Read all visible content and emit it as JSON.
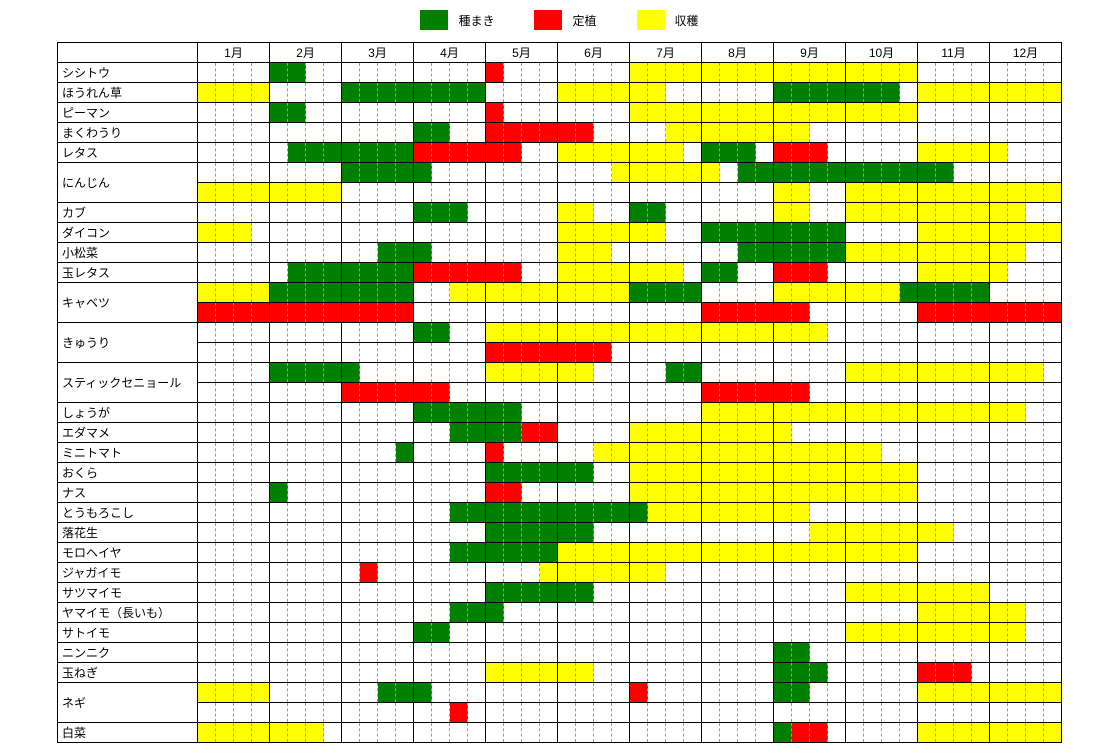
{
  "colors": {
    "sow": "#008000",
    "plant": "#ff0000",
    "harvest": "#ffff00",
    "bg": "#ffffff",
    "grid_solid": "#000000",
    "grid_dash": "#999999"
  },
  "legend": [
    {
      "color": "sow",
      "label": "種まき"
    },
    {
      "color": "plant",
      "label": "定植"
    },
    {
      "color": "harvest",
      "label": "収穫"
    }
  ],
  "months": [
    "1月",
    "2月",
    "3月",
    "4月",
    "5月",
    "6月",
    "7月",
    "8月",
    "9月",
    "10月",
    "11月",
    "12月"
  ],
  "cells_per_month": 4,
  "crops": [
    {
      "name": "シシトウ",
      "rows": [
        {
          "4": "s",
          "5": "s",
          "16": "p",
          "24": "h",
          "25": "h",
          "26": "h",
          "27": "h",
          "28": "h",
          "29": "h",
          "30": "h",
          "31": "h",
          "32": "h",
          "33": "h",
          "34": "h",
          "35": "h",
          "36": "h",
          "37": "h",
          "38": "h",
          "39": "h"
        }
      ]
    },
    {
      "name": "ほうれん草",
      "rows": [
        {
          "0": "h",
          "1": "h",
          "2": "h",
          "3": "h",
          "8": "s",
          "9": "s",
          "10": "s",
          "11": "s",
          "12": "s",
          "13": "s",
          "14": "s",
          "15": "s",
          "20": "h",
          "21": "h",
          "22": "h",
          "23": "h",
          "24": "h",
          "25": "h",
          "32": "s",
          "33": "s",
          "34": "s",
          "35": "s",
          "36": "s",
          "37": "s",
          "38": "s",
          "40": "h",
          "41": "h",
          "42": "h",
          "43": "h",
          "44": "h",
          "45": "h",
          "46": "h",
          "47": "h"
        }
      ]
    },
    {
      "name": "ピーマン",
      "rows": [
        {
          "4": "s",
          "5": "s",
          "16": "p",
          "24": "h",
          "25": "h",
          "26": "h",
          "27": "h",
          "28": "h",
          "29": "h",
          "30": "h",
          "31": "h",
          "32": "h",
          "33": "h",
          "34": "h",
          "35": "h",
          "36": "h",
          "37": "h",
          "38": "h",
          "39": "h"
        }
      ]
    },
    {
      "name": "まくわうり",
      "rows": [
        {
          "12": "s",
          "13": "s",
          "16": "p",
          "17": "p",
          "18": "p",
          "19": "p",
          "20": "p",
          "21": "p",
          "26": "h",
          "27": "h",
          "28": "h",
          "29": "h",
          "30": "h",
          "31": "h",
          "32": "h",
          "33": "h"
        }
      ]
    },
    {
      "name": "レタス",
      "rows": [
        {
          "5": "s",
          "6": "s",
          "7": "s",
          "8": "s",
          "9": "s",
          "10": "s",
          "11": "s",
          "12": "p",
          "13": "p",
          "14": "p",
          "15": "p",
          "16": "p",
          "17": "p",
          "20": "h",
          "21": "h",
          "22": "h",
          "23": "h",
          "24": "h",
          "25": "h",
          "26": "h",
          "28": "s",
          "29": "s",
          "30": "s",
          "32": "p",
          "33": "p",
          "34": "p",
          "40": "h",
          "41": "h",
          "42": "h",
          "43": "h",
          "44": "h"
        }
      ]
    },
    {
      "name": "にんじん",
      "rows": [
        {
          "8": "s",
          "9": "s",
          "10": "s",
          "11": "s",
          "12": "s",
          "23": "h",
          "24": "h",
          "25": "h",
          "26": "h",
          "27": "h",
          "28": "h",
          "30": "s",
          "31": "s",
          "32": "s",
          "33": "s",
          "34": "s",
          "35": "s",
          "36": "s",
          "37": "s",
          "38": "s",
          "39": "s",
          "40": "s",
          "41": "s"
        },
        {
          "0": "h",
          "1": "h",
          "2": "h",
          "3": "h",
          "4": "h",
          "5": "h",
          "6": "h",
          "7": "h",
          "32": "h",
          "33": "h",
          "36": "h",
          "37": "h",
          "38": "h",
          "39": "h",
          "40": "h",
          "41": "h",
          "42": "h",
          "43": "h",
          "44": "h",
          "45": "h",
          "46": "h",
          "47": "h"
        }
      ]
    },
    {
      "name": "カブ",
      "rows": [
        {
          "12": "s",
          "13": "s",
          "14": "s",
          "20": "h",
          "21": "h",
          "24": "s",
          "25": "s",
          "32": "h",
          "33": "h",
          "36": "h",
          "37": "h",
          "38": "h",
          "39": "h",
          "40": "h",
          "41": "h",
          "42": "h",
          "43": "h",
          "44": "h",
          "45": "h"
        }
      ]
    },
    {
      "name": "ダイコン",
      "rows": [
        {
          "0": "h",
          "1": "h",
          "2": "h",
          "20": "h",
          "21": "h",
          "22": "h",
          "23": "h",
          "24": "h",
          "25": "h",
          "28": "s",
          "29": "s",
          "30": "s",
          "31": "s",
          "32": "s",
          "33": "s",
          "34": "s",
          "35": "s",
          "40": "h",
          "41": "h",
          "42": "h",
          "43": "h",
          "44": "h",
          "45": "h",
          "46": "h",
          "47": "h"
        }
      ]
    },
    {
      "name": "小松菜",
      "rows": [
        {
          "10": "s",
          "11": "s",
          "12": "s",
          "20": "h",
          "21": "h",
          "22": "h",
          "30": "s",
          "31": "s",
          "32": "s",
          "33": "s",
          "34": "s",
          "35": "s",
          "36": "h",
          "37": "h",
          "38": "h",
          "39": "h",
          "40": "h",
          "41": "h",
          "42": "h",
          "43": "h",
          "44": "h",
          "45": "h"
        }
      ]
    },
    {
      "name": "玉レタス",
      "rows": [
        {
          "5": "s",
          "6": "s",
          "7": "s",
          "8": "s",
          "9": "s",
          "10": "s",
          "11": "s",
          "12": "p",
          "13": "p",
          "14": "p",
          "15": "p",
          "16": "p",
          "17": "p",
          "20": "h",
          "21": "h",
          "22": "h",
          "23": "h",
          "24": "h",
          "25": "h",
          "26": "h",
          "28": "s",
          "29": "s",
          "32": "p",
          "33": "p",
          "34": "p",
          "40": "h",
          "41": "h",
          "42": "h",
          "43": "h",
          "44": "h"
        }
      ]
    },
    {
      "name": "キャベツ",
      "rows": [
        {
          "0": "h",
          "1": "h",
          "2": "h",
          "3": "h",
          "4": "s",
          "5": "s",
          "6": "s",
          "7": "s",
          "8": "s",
          "9": "s",
          "10": "s",
          "11": "s",
          "14": "h",
          "15": "h",
          "16": "h",
          "17": "h",
          "18": "h",
          "19": "h",
          "20": "h",
          "21": "h",
          "22": "h",
          "23": "h",
          "24": "s",
          "25": "s",
          "26": "s",
          "27": "s",
          "32": "h",
          "33": "h",
          "34": "h",
          "35": "h",
          "36": "h",
          "37": "h",
          "38": "h",
          "39": "s",
          "40": "s",
          "41": "s",
          "42": "s",
          "43": "s"
        },
        {
          "0": "p",
          "1": "p",
          "2": "p",
          "3": "p",
          "4": "p",
          "5": "p",
          "6": "p",
          "7": "p",
          "8": "p",
          "9": "p",
          "10": "p",
          "11": "p",
          "28": "p",
          "29": "p",
          "30": "p",
          "31": "p",
          "32": "p",
          "33": "p",
          "40": "p",
          "41": "p",
          "42": "p",
          "43": "p",
          "44": "p",
          "45": "p",
          "46": "p",
          "47": "p"
        }
      ]
    },
    {
      "name": "きゅうり",
      "rows": [
        {
          "12": "s",
          "13": "s",
          "16": "h",
          "17": "h",
          "18": "h",
          "19": "h",
          "20": "h",
          "21": "h",
          "22": "h",
          "23": "h",
          "24": "h",
          "25": "h",
          "26": "h",
          "27": "h",
          "28": "h",
          "29": "h",
          "30": "h",
          "31": "h",
          "32": "h",
          "33": "h",
          "34": "h"
        },
        {
          "16": "p",
          "17": "p",
          "18": "p",
          "19": "p",
          "20": "p",
          "21": "p",
          "22": "p"
        }
      ]
    },
    {
      "name": "スティックセニョール",
      "rows": [
        {
          "4": "s",
          "5": "s",
          "6": "s",
          "7": "s",
          "8": "s",
          "16": "h",
          "17": "h",
          "18": "h",
          "19": "h",
          "20": "h",
          "21": "h",
          "26": "s",
          "27": "s",
          "36": "h",
          "37": "h",
          "38": "h",
          "39": "h",
          "40": "h",
          "41": "h",
          "42": "h",
          "43": "h",
          "44": "h",
          "45": "h",
          "46": "h"
        },
        {
          "8": "p",
          "9": "p",
          "10": "p",
          "11": "p",
          "12": "p",
          "13": "p",
          "28": "p",
          "29": "p",
          "30": "p",
          "31": "p",
          "32": "p",
          "33": "p"
        }
      ]
    },
    {
      "name": "しょうが",
      "rows": [
        {
          "12": "s",
          "13": "s",
          "14": "s",
          "15": "s",
          "16": "s",
          "17": "s",
          "28": "h",
          "29": "h",
          "30": "h",
          "31": "h",
          "32": "h",
          "33": "h",
          "34": "h",
          "35": "h",
          "36": "h",
          "37": "h",
          "38": "h",
          "39": "h",
          "40": "h",
          "41": "h",
          "42": "h",
          "43": "h",
          "44": "h",
          "45": "h"
        }
      ]
    },
    {
      "name": "エダマメ",
      "rows": [
        {
          "14": "s",
          "15": "s",
          "16": "s",
          "17": "s",
          "18": "p",
          "19": "p",
          "24": "h",
          "25": "h",
          "26": "h",
          "27": "h",
          "28": "h",
          "29": "h",
          "30": "h",
          "31": "h",
          "32": "h"
        }
      ]
    },
    {
      "name": "ミニトマト",
      "rows": [
        {
          "11": "s",
          "16": "p",
          "22": "h",
          "23": "h",
          "24": "h",
          "25": "h",
          "26": "h",
          "27": "h",
          "28": "h",
          "29": "h",
          "30": "h",
          "31": "h",
          "32": "h",
          "33": "h",
          "34": "h",
          "35": "h",
          "36": "h",
          "37": "h"
        }
      ]
    },
    {
      "name": "おくら",
      "rows": [
        {
          "16": "s",
          "17": "s",
          "18": "s",
          "19": "s",
          "20": "s",
          "21": "s",
          "24": "h",
          "25": "h",
          "26": "h",
          "27": "h",
          "28": "h",
          "29": "h",
          "30": "h",
          "31": "h",
          "32": "h",
          "33": "h",
          "34": "h",
          "35": "h",
          "36": "h",
          "37": "h",
          "38": "h",
          "39": "h"
        }
      ]
    },
    {
      "name": "ナス",
      "rows": [
        {
          "4": "s",
          "16": "p",
          "17": "p",
          "24": "h",
          "25": "h",
          "26": "h",
          "27": "h",
          "28": "h",
          "29": "h",
          "30": "h",
          "31": "h",
          "32": "h",
          "33": "h",
          "34": "h",
          "35": "h",
          "36": "h",
          "37": "h",
          "38": "h",
          "39": "h"
        }
      ]
    },
    {
      "name": "とうもろこし",
      "rows": [
        {
          "14": "s",
          "15": "s",
          "16": "s",
          "17": "s",
          "18": "s",
          "19": "s",
          "20": "s",
          "21": "s",
          "22": "s",
          "23": "s",
          "24": "s",
          "25": "h",
          "26": "h",
          "27": "h",
          "28": "h",
          "29": "h",
          "30": "h",
          "31": "h",
          "32": "h",
          "33": "h"
        }
      ]
    },
    {
      "name": "落花生",
      "rows": [
        {
          "16": "s",
          "17": "s",
          "18": "s",
          "19": "s",
          "20": "s",
          "21": "s",
          "34": "h",
          "35": "h",
          "36": "h",
          "37": "h",
          "38": "h",
          "39": "h",
          "40": "h",
          "41": "h"
        }
      ]
    },
    {
      "name": "モロヘイヤ",
      "rows": [
        {
          "14": "s",
          "15": "s",
          "16": "s",
          "17": "s",
          "18": "s",
          "19": "s",
          "20": "h",
          "21": "h",
          "22": "h",
          "23": "h",
          "24": "h",
          "25": "h",
          "26": "h",
          "27": "h",
          "28": "h",
          "29": "h",
          "30": "h",
          "31": "h",
          "32": "h",
          "33": "h",
          "34": "h",
          "35": "h",
          "36": "h",
          "37": "h",
          "38": "h",
          "39": "h"
        }
      ]
    },
    {
      "name": "ジャガイモ",
      "rows": [
        {
          "9": "p",
          "19": "h",
          "20": "h",
          "21": "h",
          "22": "h",
          "23": "h",
          "24": "h",
          "25": "h"
        }
      ]
    },
    {
      "name": "サツマイモ",
      "rows": [
        {
          "16": "s",
          "17": "s",
          "18": "s",
          "19": "s",
          "20": "s",
          "21": "s",
          "36": "h",
          "37": "h",
          "38": "h",
          "39": "h",
          "40": "h",
          "41": "h",
          "42": "h",
          "43": "h"
        }
      ]
    },
    {
      "name": "ヤマイモ（長いも）",
      "rows": [
        {
          "14": "s",
          "15": "s",
          "16": "s",
          "40": "h",
          "41": "h",
          "42": "h",
          "43": "h",
          "44": "h",
          "45": "h"
        }
      ]
    },
    {
      "name": "サトイモ",
      "rows": [
        {
          "12": "s",
          "13": "s",
          "36": "h",
          "37": "h",
          "38": "h",
          "39": "h",
          "40": "h",
          "41": "h",
          "42": "h",
          "43": "h",
          "44": "h",
          "45": "h"
        }
      ]
    },
    {
      "name": "ニンニク",
      "rows": [
        {
          "32": "s",
          "33": "s"
        }
      ]
    },
    {
      "name": "玉ねぎ",
      "rows": [
        {
          "16": "h",
          "17": "h",
          "18": "h",
          "19": "h",
          "20": "h",
          "21": "h",
          "32": "s",
          "33": "s",
          "34": "s",
          "40": "p",
          "41": "p",
          "42": "p"
        }
      ]
    },
    {
      "name": "ネギ",
      "rows": [
        {
          "0": "h",
          "1": "h",
          "2": "h",
          "3": "h",
          "10": "s",
          "11": "s",
          "12": "s",
          "24": "p",
          "32": "s",
          "33": "s",
          "40": "h",
          "41": "h",
          "42": "h",
          "43": "h",
          "44": "h",
          "45": "h",
          "46": "h",
          "47": "h"
        },
        {
          "14": "p"
        }
      ]
    },
    {
      "name": "白菜",
      "rows": [
        {
          "0": "h",
          "1": "h",
          "2": "h",
          "3": "h",
          "4": "h",
          "5": "h",
          "6": "h",
          "32": "s",
          "33": "p",
          "34": "p",
          "40": "h",
          "41": "h",
          "42": "h",
          "43": "h",
          "44": "h",
          "45": "h",
          "46": "h",
          "47": "h"
        }
      ]
    }
  ]
}
